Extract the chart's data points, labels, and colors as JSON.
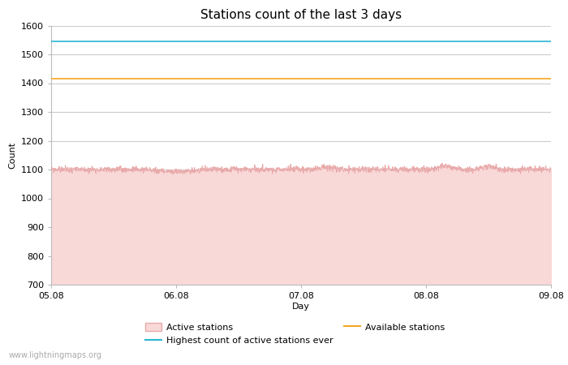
{
  "title": "Stations count of the last 3 days",
  "xlabel": "Day",
  "ylabel": "Count",
  "ylim": [
    700,
    1600
  ],
  "yticks": [
    700,
    800,
    900,
    1000,
    1100,
    1200,
    1300,
    1400,
    1500,
    1600
  ],
  "x_tick_labels": [
    "05.08",
    "06.08",
    "07.08",
    "08.08",
    "09.08"
  ],
  "active_stations_color_fill": "#f9d8d8",
  "active_stations_color_line": "#e8aaaa",
  "highest_count_line_color": "#29b6d2",
  "available_stations_color": "#f5a623",
  "highest_count_value": 1545,
  "available_stations_value": 1415,
  "active_stations_base": 1100,
  "background_color": "#ffffff",
  "grid_color": "#cccccc",
  "watermark": "www.lightningmaps.org",
  "title_fontsize": 11,
  "axis_label_fontsize": 8,
  "tick_fontsize": 8,
  "legend_fontsize": 8,
  "num_points": 2000
}
